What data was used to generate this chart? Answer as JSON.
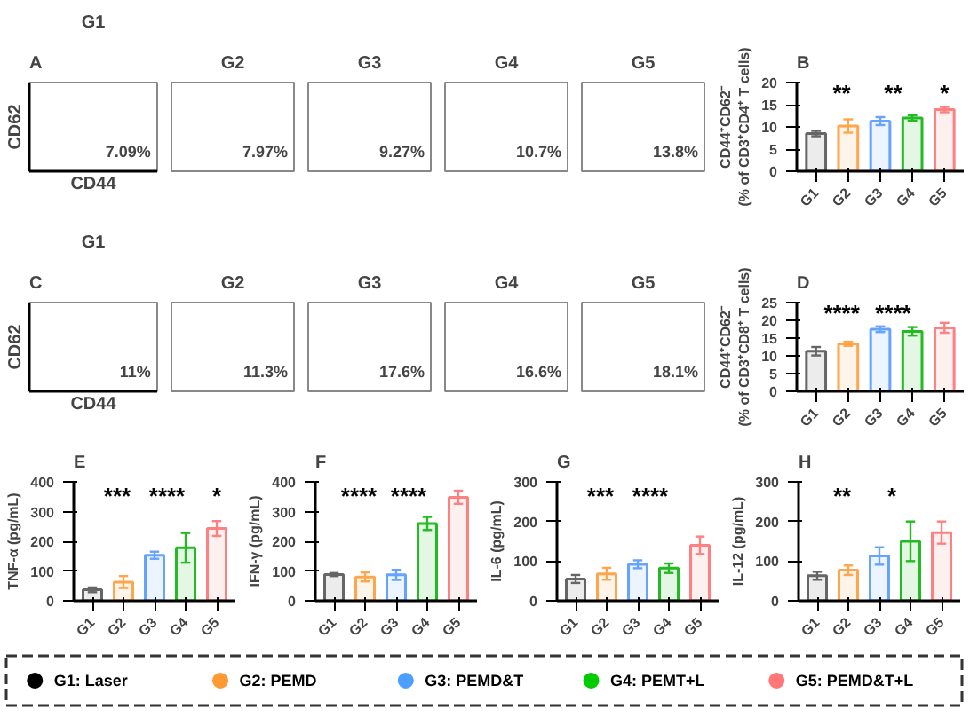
{
  "chart_data": [
    {
      "type": "other",
      "subtitle": "A",
      "title": "G1",
      "xlabel": "CD44",
      "ylabel": "CD62",
      "annotations": [
        "7.09%"
      ]
    },
    {
      "type": "other",
      "title": "G2",
      "annotations": [
        "7.97%"
      ]
    },
    {
      "type": "other",
      "title": "G3",
      "annotations": [
        "9.27%"
      ]
    },
    {
      "type": "other",
      "title": "G4",
      "annotations": [
        "10.7%"
      ]
    },
    {
      "type": "other",
      "title": "G5",
      "annotations": [
        "13.8%"
      ]
    },
    {
      "type": "bar",
      "title": "B",
      "ylabel": "CD44⁺CD62⁻\n(% of CD3⁺CD4⁺ T cells)",
      "categories": [
        "G1",
        "G2",
        "G3",
        "G4",
        "G5"
      ],
      "values": [
        8.5,
        10.2,
        11.3,
        12.0,
        13.9
      ],
      "errors": [
        0.6,
        1.5,
        0.9,
        0.6,
        0.6
      ],
      "colors": [
        "#666666",
        "#ffa64d",
        "#66a3ff",
        "#22bb22",
        "#ff8080"
      ],
      "ylim": [
        0,
        20
      ],
      "yticks": [
        0,
        5,
        10,
        15,
        20
      ],
      "annotations": [
        "**",
        "**",
        "*"
      ]
    },
    {
      "type": "other",
      "subtitle": "C",
      "title": "G1",
      "xlabel": "CD44",
      "ylabel": "CD62",
      "annotations": [
        "11%"
      ]
    },
    {
      "type": "other",
      "title": "G2",
      "annotations": [
        "11.3%"
      ]
    },
    {
      "type": "other",
      "title": "G3",
      "annotations": [
        "17.6%"
      ]
    },
    {
      "type": "other",
      "title": "G4",
      "annotations": [
        "16.6%"
      ]
    },
    {
      "type": "other",
      "title": "G5",
      "annotations": [
        "18.1%"
      ]
    },
    {
      "type": "bar",
      "title": "D",
      "ylabel": "CD44⁺CD62⁻\n(% of CD3⁺CD8⁺ T cells)",
      "categories": [
        "G1",
        "G2",
        "G3",
        "G4",
        "G5"
      ],
      "values": [
        11.3,
        13.4,
        17.5,
        16.9,
        17.9
      ],
      "errors": [
        1.2,
        0.6,
        0.8,
        1.2,
        1.4
      ],
      "colors": [
        "#666666",
        "#ffa64d",
        "#66a3ff",
        "#22bb22",
        "#ff8080"
      ],
      "ylim": [
        0,
        25
      ],
      "yticks": [
        0,
        5,
        10,
        15,
        20,
        25
      ],
      "annotations": [
        "****",
        "****"
      ]
    },
    {
      "type": "bar",
      "title": "E",
      "ylabel": "TNF-α (pg/mL)",
      "categories": [
        "G1",
        "G2",
        "G3",
        "G4",
        "G5"
      ],
      "values": [
        37,
        63,
        153,
        178,
        243
      ],
      "errors": [
        8,
        20,
        12,
        50,
        25
      ],
      "colors": [
        "#666666",
        "#ffa64d",
        "#66a3ff",
        "#22bb22",
        "#ff8080"
      ],
      "ylim": [
        0,
        400
      ],
      "yticks": [
        0,
        100,
        200,
        300,
        400
      ],
      "annotations": [
        "***",
        "****",
        "*"
      ]
    },
    {
      "type": "bar",
      "title": "F",
      "ylabel": "IFN-γ (pg/mL)",
      "categories": [
        "G1",
        "G2",
        "G3",
        "G4",
        "G5"
      ],
      "values": [
        88,
        80,
        87,
        260,
        348
      ],
      "errors": [
        5,
        15,
        17,
        22,
        22
      ],
      "colors": [
        "#666666",
        "#ffa64d",
        "#66a3ff",
        "#22bb22",
        "#ff8080"
      ],
      "ylim": [
        0,
        400
      ],
      "yticks": [
        0,
        100,
        200,
        300,
        400
      ],
      "annotations": [
        "****",
        "****"
      ]
    },
    {
      "type": "bar",
      "title": "G",
      "ylabel": "IL-6 (pg/mL)",
      "categories": [
        "G1",
        "G2",
        "G3",
        "G4",
        "G5"
      ],
      "values": [
        55,
        68,
        92,
        82,
        140
      ],
      "errors": [
        10,
        15,
        10,
        12,
        22
      ],
      "colors": [
        "#666666",
        "#ffa64d",
        "#66a3ff",
        "#22bb22",
        "#ff8080"
      ],
      "ylim": [
        0,
        300
      ],
      "yticks": [
        0,
        100,
        200,
        300
      ],
      "annotations": [
        "***",
        "****"
      ]
    },
    {
      "type": "bar",
      "title": "H",
      "ylabel": "IL-12 (pg/mL)",
      "categories": [
        "G1",
        "G2",
        "G3",
        "G4",
        "G5"
      ],
      "values": [
        63,
        77,
        113,
        150,
        172
      ],
      "errors": [
        10,
        12,
        22,
        50,
        28
      ],
      "colors": [
        "#666666",
        "#ffa64d",
        "#66a3ff",
        "#22bb22",
        "#ff8080"
      ],
      "ylim": [
        0,
        300
      ],
      "yticks": [
        0,
        100,
        200,
        300
      ],
      "annotations": [
        "**",
        "*"
      ]
    },
    {
      "type": "other",
      "categories": [
        "G1: Laser",
        "G2: PEMD",
        "G3: PEMD&T",
        "G4: PEMT+L",
        "G5: PEMD&T+L"
      ],
      "colors": [
        "#000000",
        "#ff9933",
        "#4d9fff",
        "#00cc00",
        "#ff7777"
      ]
    }
  ]
}
